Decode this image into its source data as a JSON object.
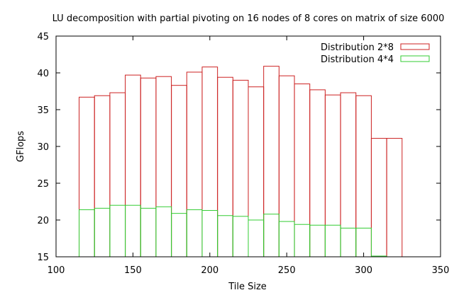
{
  "chart_data": {
    "type": "bar",
    "title": "LU decomposition with partial pivoting on 16 nodes of 8 cores on matrix of size 6000",
    "xlabel": "Tile Size",
    "ylabel": "GFlops",
    "xlim": [
      100,
      350
    ],
    "ylim": [
      15,
      45
    ],
    "xticks": [
      100,
      150,
      200,
      250,
      300,
      350
    ],
    "yticks": [
      15,
      20,
      25,
      30,
      35,
      40,
      45
    ],
    "bin_width": 10,
    "grid": false,
    "legend_position": "top-right",
    "x": [
      120,
      130,
      140,
      150,
      160,
      170,
      180,
      190,
      200,
      210,
      220,
      230,
      240,
      250,
      260,
      270,
      280,
      290,
      300,
      310,
      320
    ],
    "series": [
      {
        "name": "Distribution 2*8",
        "color": "#cc2222",
        "values": [
          36.7,
          36.9,
          37.3,
          39.7,
          39.3,
          39.5,
          38.3,
          40.1,
          40.8,
          39.4,
          39.0,
          38.1,
          40.9,
          39.6,
          38.5,
          37.7,
          37.0,
          37.3,
          36.9,
          31.1,
          31.1
        ]
      },
      {
        "name": "Distribution 4*4",
        "color": "#33cc33",
        "values": [
          21.4,
          21.6,
          22.0,
          22.0,
          21.6,
          21.8,
          20.9,
          21.4,
          21.3,
          20.6,
          20.5,
          20.0,
          20.8,
          19.8,
          19.4,
          19.3,
          19.3,
          18.9,
          18.9,
          15.1,
          null
        ]
      }
    ]
  }
}
